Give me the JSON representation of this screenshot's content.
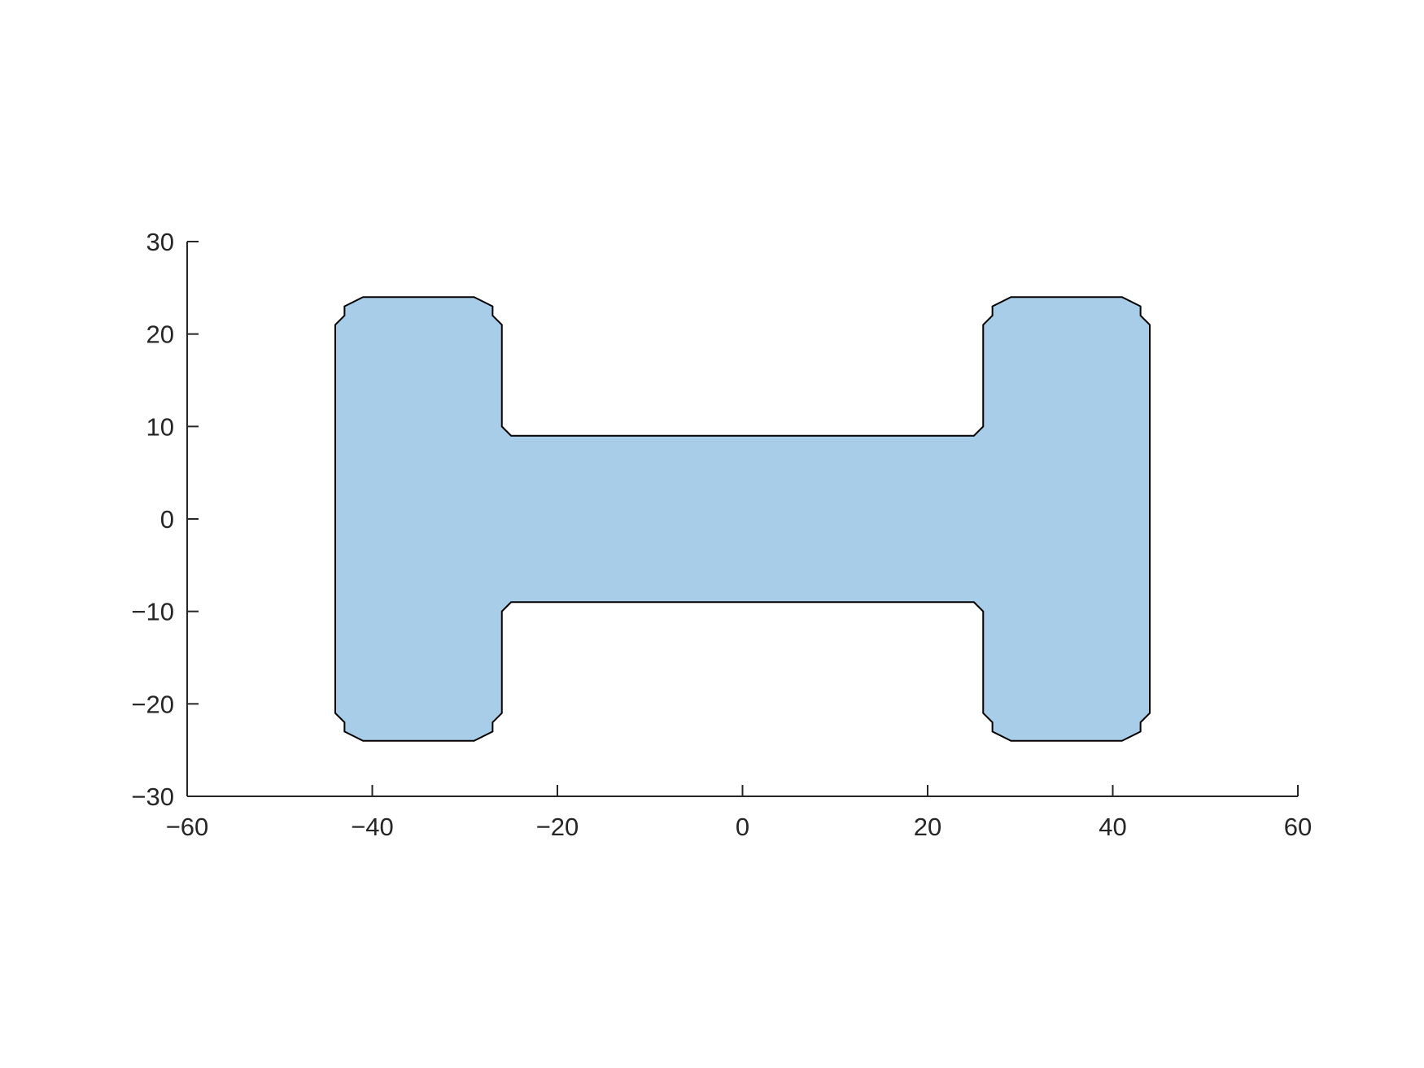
{
  "chart_data": {
    "type": "area",
    "title": "",
    "xlabel": "",
    "ylabel": "",
    "xlim": [
      -60,
      60
    ],
    "ylim": [
      -30,
      30
    ],
    "x_ticks": [
      -60,
      -40,
      -20,
      0,
      20,
      40,
      60
    ],
    "y_ticks": [
      -30,
      -20,
      -10,
      0,
      10,
      20,
      30
    ],
    "x_tick_labels": [
      "−60",
      "−40",
      "−20",
      "0",
      "20",
      "40",
      "60"
    ],
    "y_tick_labels": [
      "−30",
      "−20",
      "−10",
      "0",
      "10",
      "20",
      "30"
    ],
    "grid": false,
    "box": false,
    "series": [
      {
        "fill_color": "#a8cde8",
        "edge_color": "#000000",
        "x": [
          -44,
          -43,
          -43,
          -41,
          -29,
          -27,
          -27,
          -26,
          -26,
          -25,
          25,
          26,
          26,
          27,
          27,
          29,
          41,
          43,
          43,
          44,
          44,
          43,
          43,
          41,
          29,
          27,
          27,
          26,
          26,
          25,
          -25,
          -26,
          -26,
          -27,
          -27,
          -29,
          -41,
          -43,
          -43,
          -44
        ],
        "y": [
          21,
          22,
          23,
          24,
          24,
          23,
          22,
          21,
          10,
          9,
          9,
          10,
          21,
          22,
          23,
          24,
          24,
          23,
          22,
          21,
          -21,
          -22,
          -23,
          -24,
          -24,
          -23,
          -22,
          -21,
          -10,
          -9,
          -9,
          -10,
          -21,
          -22,
          -23,
          -24,
          -24,
          -23,
          -22,
          -21
        ]
      }
    ]
  }
}
